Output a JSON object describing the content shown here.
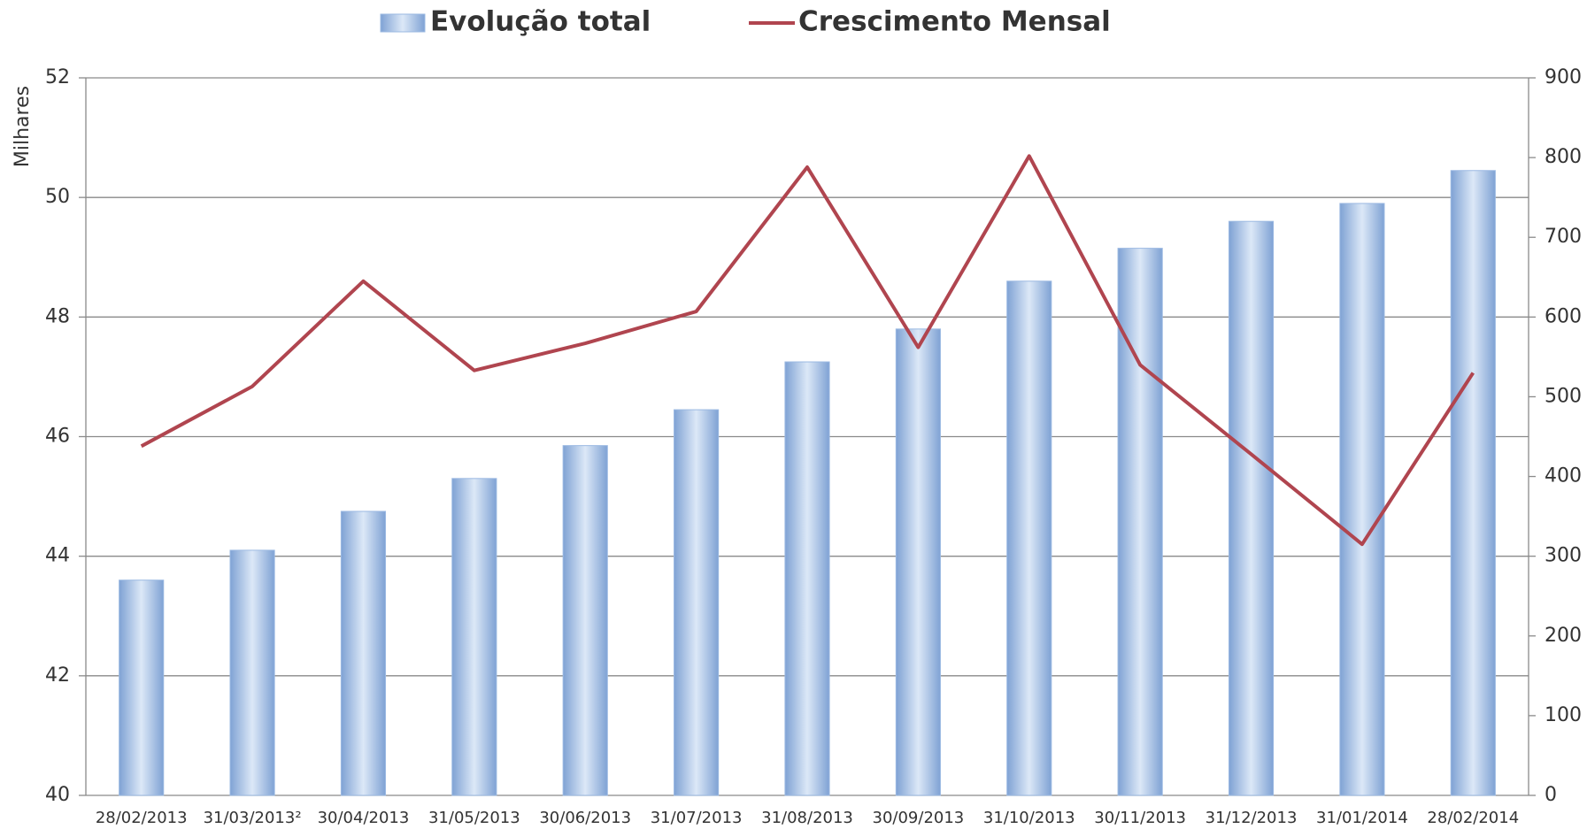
{
  "chart_data": {
    "type": "bar",
    "categories": [
      "28/02/2013",
      "31/03/2013²",
      "30/04/2013",
      "31/05/2013",
      "30/06/2013",
      "31/07/2013",
      "31/08/2013",
      "30/09/2013",
      "31/10/2013",
      "30/11/2013",
      "31/12/2013",
      "31/01/2014",
      "28/02/2014"
    ],
    "series": [
      {
        "name": "Evolução total",
        "type": "bar",
        "color": "#9bb9e2",
        "values": [
          43.6,
          44.1,
          44.75,
          45.3,
          45.85,
          46.45,
          47.25,
          47.8,
          48.6,
          49.15,
          49.6,
          49.9,
          50.45
        ]
      },
      {
        "name": "Crescimento Mensal",
        "type": "line",
        "axis": "y2",
        "color": "#b0454f",
        "values": [
          438,
          513,
          645,
          533,
          567,
          607,
          788,
          562,
          802,
          540,
          428,
          315,
          530
        ]
      }
    ],
    "ylabel": "Milhares",
    "ylim": [
      40,
      52
    ],
    "yticks": [
      40,
      42,
      44,
      46,
      48,
      50,
      52
    ],
    "y2lim": [
      0,
      900
    ],
    "y2ticks": [
      0,
      100,
      200,
      300,
      400,
      500,
      600,
      700,
      800,
      900
    ],
    "grid": true,
    "legend": "top"
  }
}
